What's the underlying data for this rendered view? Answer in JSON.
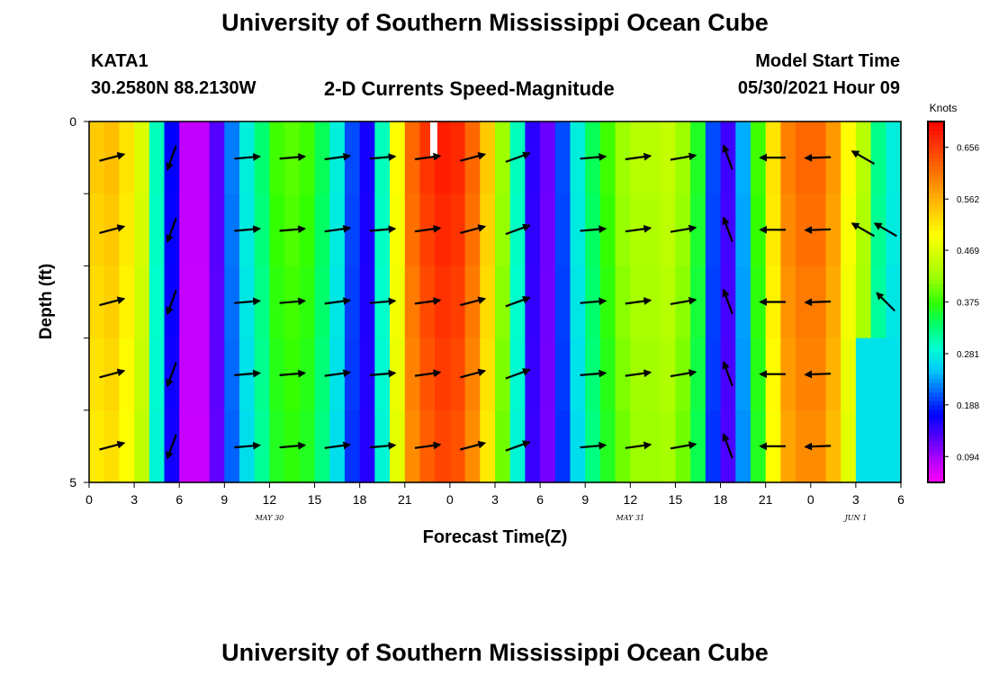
{
  "header": {
    "title": "University of Southern Mississippi Ocean Cube",
    "station_id": "KATA1",
    "station_coords": "30.2580N  88.2130W",
    "subtitle": "2-D Currents Speed-Magnitude",
    "model_start_label": "Model Start Time",
    "model_start_value": "05/30/2021 Hour 09"
  },
  "footer": {
    "title": "University of Southern Mississippi Ocean Cube"
  },
  "chart_data": {
    "type": "heatmap",
    "title": "2-D Currents Speed-Magnitude",
    "xlabel": "Forecast Time(Z)",
    "ylabel": "Depth (ft)",
    "x_hours": [
      0,
      1,
      2,
      3,
      4,
      5,
      6,
      7,
      8,
      9,
      10,
      11,
      12,
      13,
      14,
      15,
      16,
      17,
      18,
      19,
      20,
      21,
      22,
      23,
      24,
      25,
      26,
      27,
      28,
      29,
      30,
      31,
      32,
      33,
      34,
      35,
      36,
      37,
      38,
      39,
      40,
      41,
      42,
      43,
      44,
      45,
      46,
      47,
      48,
      49,
      50,
      51,
      52,
      53,
      54
    ],
    "xlim": [
      0,
      54
    ],
    "xtick_values": [
      0,
      3,
      6,
      9,
      12,
      15,
      18,
      21,
      24,
      27,
      30,
      33,
      36,
      39,
      42,
      45,
      48,
      51,
      54
    ],
    "xtick_labels": [
      "0",
      "3",
      "6",
      "9",
      "12",
      "15",
      "18",
      "21",
      "0",
      "3",
      "6",
      "9",
      "12",
      "15",
      "18",
      "21",
      "0",
      "3",
      "6"
    ],
    "date_labels": [
      {
        "hour": 12,
        "label": "MAY 30"
      },
      {
        "hour": 36,
        "label": "MAY 31"
      },
      {
        "hour": 51,
        "label": "JUN 1"
      }
    ],
    "depth_rows": [
      0,
      1,
      2,
      3,
      4
    ],
    "ylim": [
      0,
      5
    ],
    "ytick_values": [
      0,
      1,
      2,
      3,
      4,
      5
    ],
    "ytick_labels": [
      "0",
      "",
      "",
      "",
      "",
      "5"
    ],
    "colorbar": {
      "label": "Knots",
      "min": 0.047,
      "max": 0.703,
      "ticks": [
        0.094,
        0.188,
        0.281,
        0.375,
        0.469,
        0.562,
        0.656
      ],
      "tick_labels": [
        "0.094",
        "0.188",
        "0.281",
        "0.375",
        "0.469",
        "0.562",
        "0.656"
      ],
      "colors": [
        "#ff00ff",
        "#b200ff",
        "#5500ff",
        "#0000ff",
        "#0066ff",
        "#00ccff",
        "#00ffcc",
        "#00ff66",
        "#33ff00",
        "#99ff00",
        "#ccff00",
        "#ffff00",
        "#ffcc00",
        "#ff9900",
        "#ff6600",
        "#ff3300",
        "#ff0000"
      ]
    },
    "speed_profile": [
      0.54,
      0.55,
      0.52,
      0.47,
      0.3,
      0.17,
      0.08,
      0.08,
      0.13,
      0.22,
      0.28,
      0.33,
      0.38,
      0.39,
      0.38,
      0.34,
      0.28,
      0.2,
      0.16,
      0.3,
      0.5,
      0.62,
      0.66,
      0.68,
      0.67,
      0.62,
      0.54,
      0.42,
      0.3,
      0.15,
      0.12,
      0.2,
      0.28,
      0.34,
      0.38,
      0.42,
      0.44,
      0.44,
      0.45,
      0.42,
      0.36,
      0.2,
      0.14,
      0.24,
      0.38,
      0.52,
      0.6,
      0.62,
      0.62,
      0.58,
      0.5,
      0.44,
      0.32,
      0.28,
      0.26
    ],
    "lower_layer_speeds": [
      {
        "from_hour": 51,
        "to_hour": 54,
        "from_row": 3,
        "speed": 0.27
      },
      {
        "from_hour": 51,
        "to_hour": 54,
        "from_row": 4,
        "speed": 0.21
      }
    ],
    "vector_x_hours": [
      1.5,
      5.5,
      10.5,
      13.5,
      16.5,
      19.5,
      22.5,
      25.5,
      28.5,
      33.5,
      36.5,
      39.5,
      42.5,
      45.5,
      48.5,
      51.5
    ],
    "vector_angles_deg": {
      "1.5": 15,
      "5.5": 250,
      "10.5": 5,
      "13.5": 5,
      "16.5": 8,
      "19.5": 5,
      "22.5": 8,
      "25.5": 15,
      "28.5": 20,
      "33.5": 5,
      "36.5": 8,
      "39.5": 10,
      "42.5": 110,
      "45.5": 180,
      "48.5": 182,
      "51.5": 150
    },
    "missing_vectors": [
      {
        "hour": 51.5,
        "rows": [
          2,
          3,
          4
        ]
      },
      {
        "hour": 53.5,
        "rows": [
          0
        ]
      }
    ],
    "extra_vectors": [
      {
        "hour": 53,
        "row": 1,
        "angle_deg": 150
      },
      {
        "hour": 53,
        "row": 2,
        "angle_deg": 135
      }
    ]
  }
}
